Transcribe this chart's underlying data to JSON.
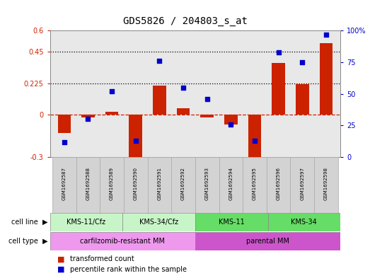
{
  "title": "GDS5826 / 204803_s_at",
  "samples": [
    "GSM1692587",
    "GSM1692588",
    "GSM1692589",
    "GSM1692590",
    "GSM1692591",
    "GSM1692592",
    "GSM1692593",
    "GSM1692594",
    "GSM1692595",
    "GSM1692596",
    "GSM1692597",
    "GSM1692598"
  ],
  "transformed_count": [
    -0.13,
    -0.02,
    0.02,
    -0.32,
    0.21,
    0.05,
    -0.02,
    -0.07,
    -0.33,
    0.37,
    0.22,
    0.51
  ],
  "percentile_rank": [
    12,
    30,
    52,
    13,
    76,
    55,
    46,
    26,
    13,
    83,
    75,
    97
  ],
  "cell_line_groups": [
    {
      "label": "KMS-11/Cfz",
      "start": 0,
      "end": 3,
      "color": "#c8f5c8"
    },
    {
      "label": "KMS-34/Cfz",
      "start": 3,
      "end": 6,
      "color": "#c8f5c8"
    },
    {
      "label": "KMS-11",
      "start": 6,
      "end": 9,
      "color": "#66dd66"
    },
    {
      "label": "KMS-34",
      "start": 9,
      "end": 12,
      "color": "#66dd66"
    }
  ],
  "cell_type_groups": [
    {
      "label": "carfilzomib-resistant MM",
      "start": 0,
      "end": 6,
      "color": "#ee99ee"
    },
    {
      "label": "parental MM",
      "start": 6,
      "end": 12,
      "color": "#ee99ee"
    }
  ],
  "ylim_left": [
    -0.3,
    0.6
  ],
  "ylim_right": [
    0,
    100
  ],
  "bar_color": "#cc2200",
  "dot_color": "#0000cc",
  "plot_bg_color": "#e8e8e8",
  "title_fontsize": 10,
  "tick_fontsize": 7,
  "sample_fontsize": 5,
  "annotation_fontsize": 7
}
